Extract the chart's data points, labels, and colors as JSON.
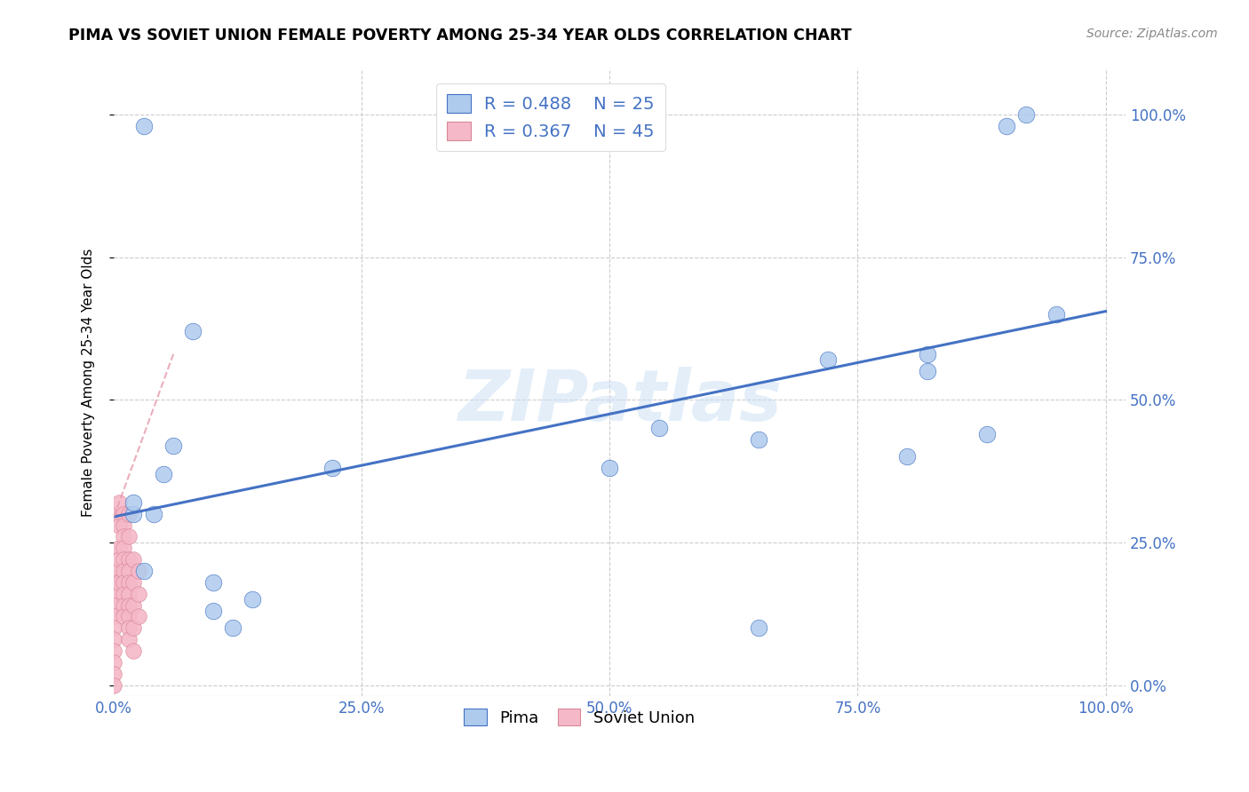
{
  "title": "PIMA VS SOVIET UNION FEMALE POVERTY AMONG 25-34 YEAR OLDS CORRELATION CHART",
  "source": "Source: ZipAtlas.com",
  "ylabel": "Female Poverty Among 25-34 Year Olds",
  "watermark": "ZIPatlas",
  "pima_R": 0.488,
  "pima_N": 25,
  "soviet_R": 0.367,
  "soviet_N": 45,
  "pima_color": "#aecbee",
  "soviet_color": "#f5b8c8",
  "pima_line_color": "#4472c4",
  "soviet_line_color": "#e8a0b0",
  "pima_scatter_x": [
    0.02,
    0.03,
    0.04,
    0.05,
    0.06,
    0.08,
    0.1,
    0.1,
    0.12,
    0.14,
    0.22,
    0.5,
    0.65,
    0.72,
    0.8,
    0.82,
    0.82,
    0.88,
    0.02,
    0.03,
    0.55,
    0.9,
    0.92,
    0.95,
    0.65
  ],
  "pima_scatter_y": [
    0.3,
    0.2,
    0.3,
    0.37,
    0.42,
    0.62,
    0.13,
    0.18,
    0.1,
    0.15,
    0.38,
    0.38,
    0.43,
    0.57,
    0.4,
    0.55,
    0.58,
    0.44,
    0.32,
    0.98,
    0.45,
    0.98,
    1.0,
    0.65,
    0.1
  ],
  "soviet_scatter_x": [
    0.0,
    0.0,
    0.0,
    0.0,
    0.0,
    0.0,
    0.0,
    0.0,
    0.0,
    0.0,
    0.0,
    0.0,
    0.005,
    0.005,
    0.005,
    0.005,
    0.005,
    0.01,
    0.01,
    0.01,
    0.01,
    0.01,
    0.01,
    0.01,
    0.01,
    0.01,
    0.01,
    0.015,
    0.015,
    0.015,
    0.015,
    0.015,
    0.015,
    0.015,
    0.015,
    0.015,
    0.015,
    0.02,
    0.02,
    0.02,
    0.02,
    0.02,
    0.025,
    0.025,
    0.025
  ],
  "soviet_scatter_y": [
    0.3,
    0.2,
    0.18,
    0.16,
    0.14,
    0.12,
    0.1,
    0.08,
    0.06,
    0.04,
    0.02,
    0.0,
    0.32,
    0.28,
    0.24,
    0.22,
    0.18,
    0.3,
    0.28,
    0.26,
    0.24,
    0.22,
    0.2,
    0.18,
    0.16,
    0.14,
    0.12,
    0.3,
    0.26,
    0.22,
    0.2,
    0.18,
    0.16,
    0.14,
    0.12,
    0.1,
    0.08,
    0.22,
    0.18,
    0.14,
    0.1,
    0.06,
    0.2,
    0.16,
    0.12
  ],
  "pima_line_x0": 0.0,
  "pima_line_x1": 1.0,
  "pima_line_y0": 0.295,
  "pima_line_y1": 0.655,
  "soviet_line_x0": 0.0,
  "soviet_line_x1": 0.06,
  "soviet_line_y0": 0.295,
  "soviet_line_y1": 0.58,
  "xlim": [
    0.0,
    1.02
  ],
  "ylim": [
    -0.02,
    1.08
  ],
  "xticks": [
    0.0,
    0.25,
    0.5,
    0.75,
    1.0
  ],
  "yticks": [
    0.0,
    0.25,
    0.5,
    0.75,
    1.0
  ],
  "xtick_labels": [
    "0.0%",
    "25.0%",
    "50.0%",
    "75.0%",
    "100.0%"
  ],
  "ytick_labels": [
    "0.0%",
    "25.0%",
    "50.0%",
    "75.0%",
    "100.0%"
  ],
  "tick_color": "#4472c4",
  "grid_color": "#cccccc",
  "background_color": "#ffffff"
}
